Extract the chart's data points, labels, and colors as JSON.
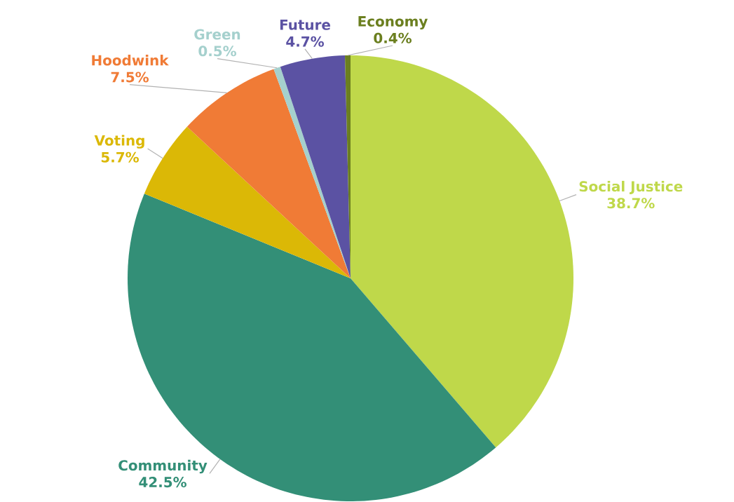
{
  "chart_data": {
    "type": "pie",
    "categories": [
      "Social Justice",
      "Community",
      "Voting",
      "Hoodwink",
      "Green",
      "Future",
      "Economy"
    ],
    "values": [
      38.7,
      42.5,
      5.7,
      7.5,
      0.5,
      4.7,
      0.4
    ],
    "value_labels": [
      "38.7%",
      "42.5%",
      "5.7%",
      "7.5%",
      "0.5%",
      "4.7%",
      "0.4%"
    ],
    "colors": [
      "#bfd84a",
      "#338f77",
      "#dbb806",
      "#f07b36",
      "#a5d0cd",
      "#5b52a3",
      "#6b7f1f"
    ]
  }
}
